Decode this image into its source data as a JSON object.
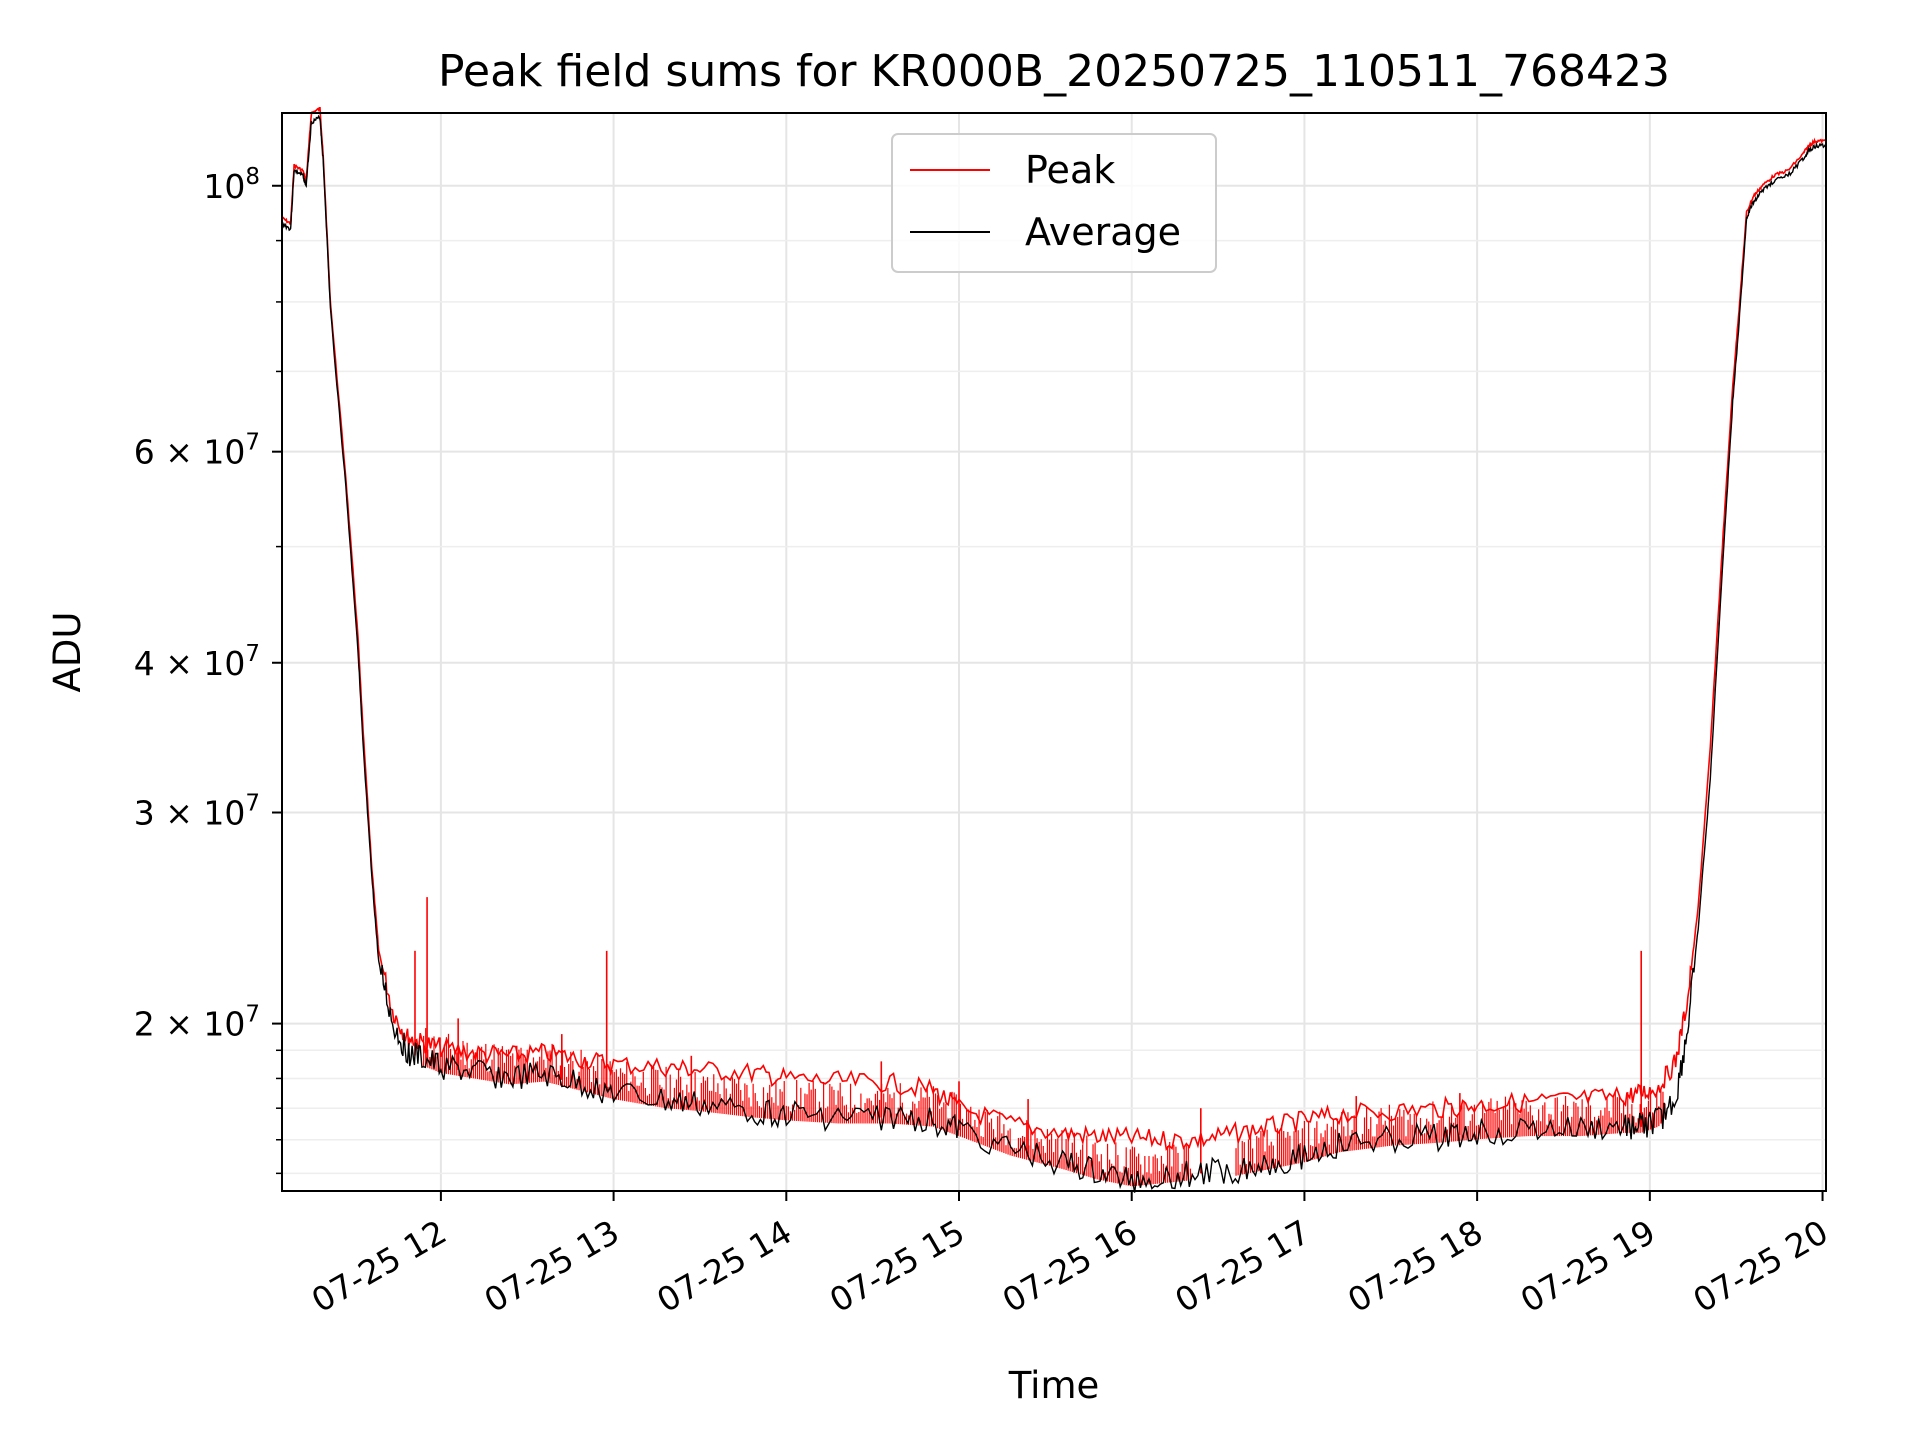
{
  "chart_data": {
    "type": "line",
    "title": "Peak field sums for KR000B_20250725_110511_768423",
    "xlabel": "Time",
    "ylabel": "ADU",
    "yscale": "log",
    "ylim": [
      14500000,
      115000000
    ],
    "x_units": "hours on 2025-07-25",
    "xlim": [
      11.08,
      20.02
    ],
    "grid": true,
    "legend_position": "upper center",
    "x_ticks": [
      {
        "value": 12,
        "label": "07-25 12"
      },
      {
        "value": 13,
        "label": "07-25 13"
      },
      {
        "value": 14,
        "label": "07-25 14"
      },
      {
        "value": 15,
        "label": "07-25 15"
      },
      {
        "value": 16,
        "label": "07-25 16"
      },
      {
        "value": 17,
        "label": "07-25 17"
      },
      {
        "value": 18,
        "label": "07-25 18"
      },
      {
        "value": 19,
        "label": "07-25 19"
      },
      {
        "value": 20,
        "label": "07-25 20"
      }
    ],
    "y_ticks": [
      {
        "value": 100000000,
        "mantissa": "",
        "exponent": "8"
      },
      {
        "value": 60000000,
        "mantissa": "6 × ",
        "exponent": "7"
      },
      {
        "value": 40000000,
        "mantissa": "4 × ",
        "exponent": "7"
      },
      {
        "value": 30000000,
        "mantissa": "3 × ",
        "exponent": "7"
      },
      {
        "value": 20000000,
        "mantissa": "2 × ",
        "exponent": "7"
      }
    ],
    "y_minor_ticks": [
      15000000,
      16000000,
      17000000,
      18000000,
      19000000,
      50000000,
      70000000,
      80000000,
      90000000
    ],
    "series": [
      {
        "name": "Peak",
        "color": "#ff0000",
        "x": [
          11.08,
          11.13,
          11.15,
          11.2,
          11.22,
          11.25,
          11.3,
          11.32,
          11.36,
          11.45,
          11.52,
          11.55,
          11.6,
          11.64,
          11.72,
          11.8,
          11.88,
          12.0,
          12.2,
          12.4,
          12.6,
          12.8,
          13.0,
          13.3,
          13.5,
          13.8,
          14.0,
          14.3,
          14.6,
          14.85,
          15.0,
          15.3,
          15.6,
          15.8,
          16.0,
          16.2,
          16.4,
          16.6,
          16.8,
          17.0,
          17.2,
          17.5,
          17.8,
          18.0,
          18.3,
          18.6,
          18.85,
          18.95,
          19.05,
          19.15,
          19.22,
          19.28,
          19.35,
          19.42,
          19.48,
          19.52,
          19.56,
          19.6,
          19.65,
          19.72,
          19.8,
          19.88,
          19.92,
          19.96,
          20.02
        ],
        "y": [
          94000000,
          93000000,
          104000000,
          103000000,
          101000000,
          115000000,
          116000000,
          105000000,
          80000000,
          57000000,
          42000000,
          35000000,
          27000000,
          23000000,
          20500000,
          19500000,
          19300000,
          19100000,
          18900000,
          18800000,
          18900000,
          18700000,
          18500000,
          18400000,
          18300000,
          18200000,
          18000000,
          17900000,
          17850000,
          17600000,
          17000000,
          16500000,
          16200000,
          16100000,
          16050000,
          16000000,
          16000000,
          16200000,
          16400000,
          16600000,
          16800000,
          16900000,
          17000000,
          17100000,
          17200000,
          17300000,
          17400000,
          17500000,
          17700000,
          18600000,
          21000000,
          25000000,
          34000000,
          50000000,
          68000000,
          80000000,
          95000000,
          98000000,
          100000000,
          102000000,
          103000000,
          106000000,
          108000000,
          109000000,
          109000000
        ],
        "spikes": [
          {
            "x": 11.92,
            "y": 25500000
          },
          {
            "x": 11.85,
            "y": 23000000
          },
          {
            "x": 12.96,
            "y": 23000000
          },
          {
            "x": 12.1,
            "y": 20200000
          },
          {
            "x": 12.7,
            "y": 19600000
          },
          {
            "x": 13.45,
            "y": 18800000
          },
          {
            "x": 14.55,
            "y": 18600000
          },
          {
            "x": 15.0,
            "y": 17900000
          },
          {
            "x": 15.4,
            "y": 17300000
          },
          {
            "x": 16.4,
            "y": 17000000
          },
          {
            "x": 17.3,
            "y": 17400000
          },
          {
            "x": 17.9,
            "y": 17500000
          },
          {
            "x": 18.95,
            "y": 23000000
          }
        ]
      },
      {
        "name": "Average",
        "color": "#000000",
        "x": [
          11.08,
          11.13,
          11.15,
          11.2,
          11.22,
          11.25,
          11.3,
          11.32,
          11.36,
          11.45,
          11.52,
          11.55,
          11.6,
          11.64,
          11.72,
          11.8,
          11.88,
          12.0,
          12.2,
          12.4,
          12.6,
          12.8,
          13.0,
          13.3,
          13.5,
          13.8,
          14.0,
          14.3,
          14.6,
          14.85,
          15.0,
          15.3,
          15.6,
          15.8,
          16.0,
          16.2,
          16.4,
          16.6,
          16.8,
          17.0,
          17.2,
          17.5,
          17.8,
          18.0,
          18.3,
          18.6,
          18.85,
          18.95,
          19.05,
          19.15,
          19.22,
          19.28,
          19.35,
          19.42,
          19.48,
          19.52,
          19.56,
          19.6,
          19.65,
          19.72,
          19.8,
          19.88,
          19.92,
          19.96,
          20.02
        ],
        "y": [
          93000000,
          92000000,
          103000000,
          102000000,
          100000000,
          113000000,
          114000000,
          104000000,
          79000000,
          56000000,
          41000000,
          34000000,
          26500000,
          22500000,
          20000000,
          19000000,
          18700000,
          18400000,
          18200000,
          18000000,
          18100000,
          17800000,
          17500000,
          17200000,
          17100000,
          16900000,
          16800000,
          16700000,
          16700000,
          16600000,
          16300000,
          15700000,
          15300000,
          15000000,
          14800000,
          14900000,
          15000000,
          15100000,
          15300000,
          15500000,
          15800000,
          16000000,
          16100000,
          16200000,
          16300000,
          16300000,
          16400000,
          16400000,
          16600000,
          17300000,
          19800000,
          24000000,
          32000000,
          48000000,
          66000000,
          78000000,
          94000000,
          97000000,
          99000000,
          101000000,
          102000000,
          105000000,
          107000000,
          108000000,
          108000000
        ]
      }
    ]
  }
}
